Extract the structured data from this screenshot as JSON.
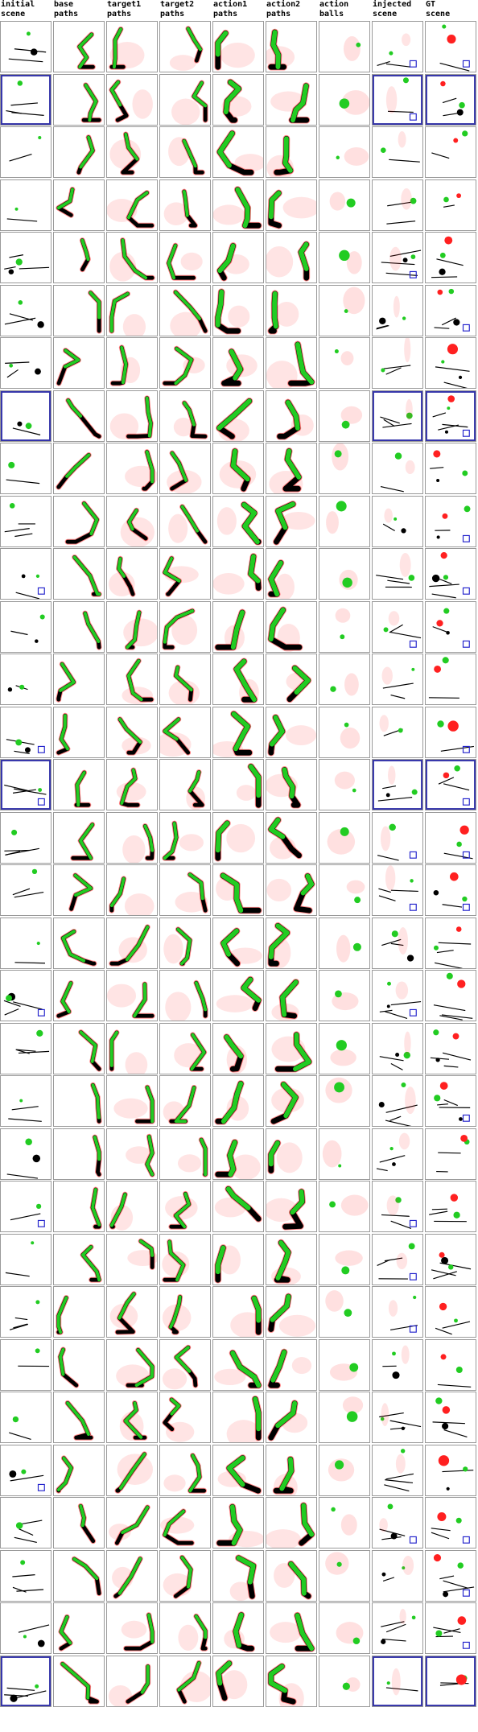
{
  "columns": [
    {
      "key": "initial",
      "label_line1": "initial",
      "label_line2": "scene"
    },
    {
      "key": "base",
      "label_line1": "base",
      "label_line2": "paths"
    },
    {
      "key": "target1",
      "label_line1": "target1",
      "label_line2": "paths"
    },
    {
      "key": "target2",
      "label_line1": "target2",
      "label_line2": "paths"
    },
    {
      "key": "action1",
      "label_line1": "action1",
      "label_line2": "paths"
    },
    {
      "key": "action2",
      "label_line1": "action2",
      "label_line2": "paths"
    },
    {
      "key": "balls",
      "label_line1": "action",
      "label_line2": "balls"
    },
    {
      "key": "injected",
      "label_line1": "injected",
      "label_line2": "scene"
    },
    {
      "key": "gt",
      "label_line1": "GT",
      "label_line2": "scene"
    }
  ],
  "row_count": 32,
  "colors": {
    "green": "#22cc22",
    "red": "#ff2020",
    "black": "#000000",
    "blue": "#2222cc",
    "frame_blue": "#3333aa",
    "cell_border": "#9a9a9a"
  }
}
